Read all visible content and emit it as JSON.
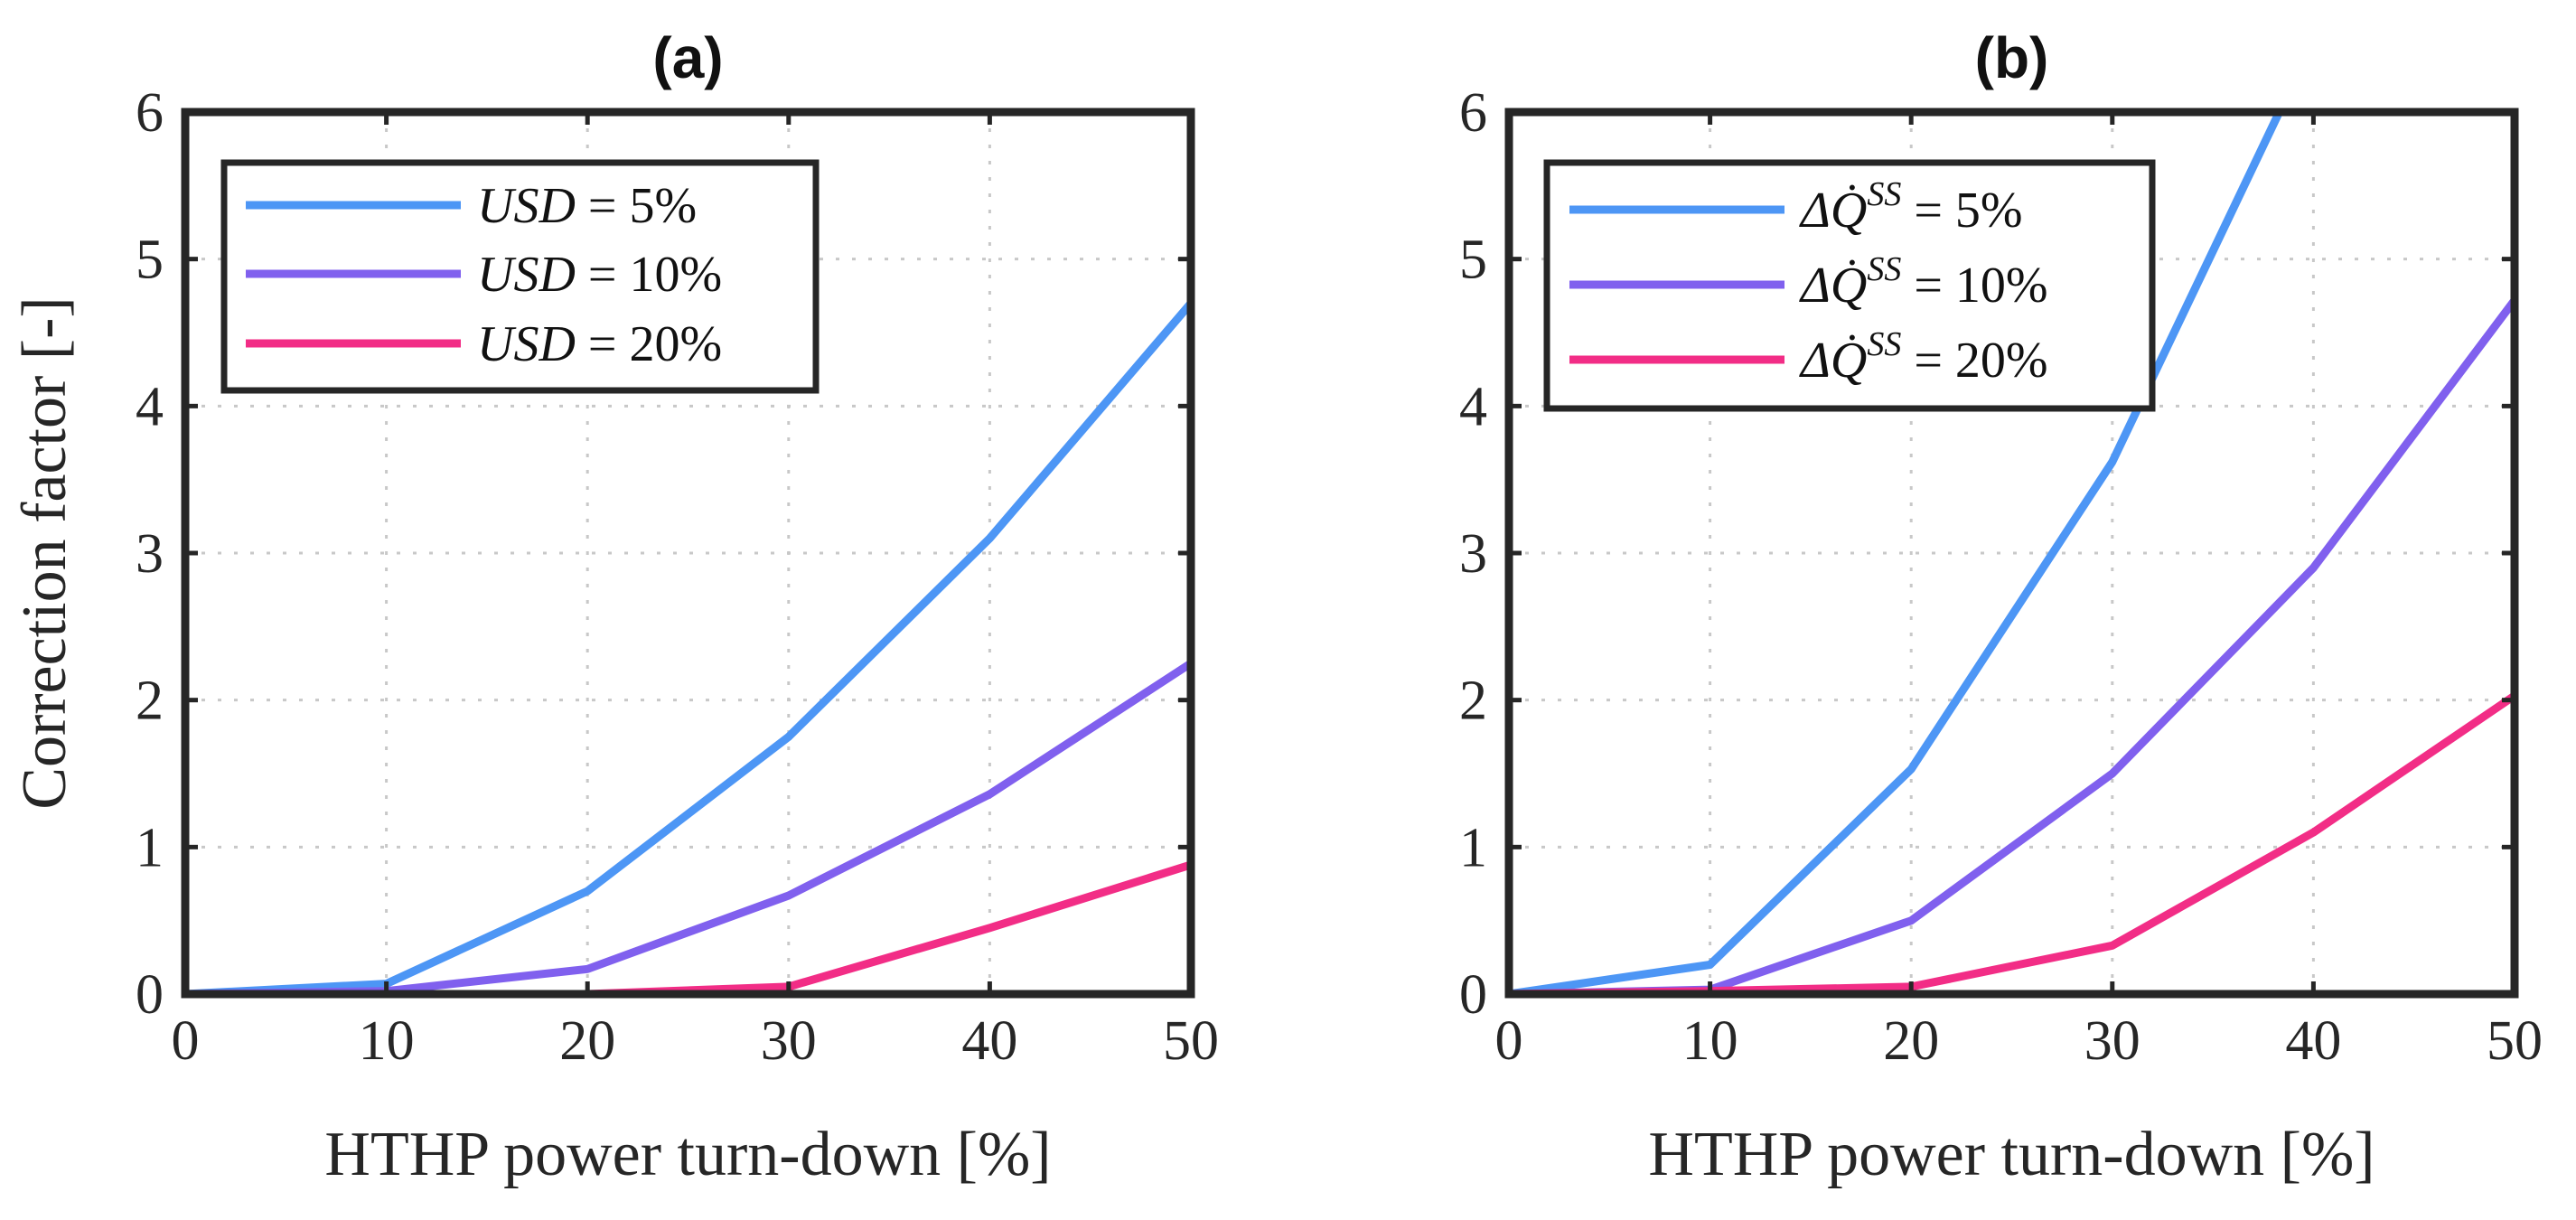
{
  "chart_data": [
    {
      "type": "line",
      "title": "(a)",
      "xlabel": "HTHP power turn-down [%]",
      "ylabel": "Correction factor [-]",
      "xlim": [
        0,
        50
      ],
      "ylim": [
        0,
        6
      ],
      "xticks": [
        "0",
        "10",
        "20",
        "30",
        "40",
        "50"
      ],
      "yticks": [
        "0",
        "1",
        "2",
        "3",
        "4",
        "5",
        "6"
      ],
      "grid": true,
      "legend_position": "top-left",
      "x": [
        0,
        10,
        20,
        30,
        40,
        50
      ],
      "series": [
        {
          "name": "USD = 5%",
          "legend_var": "USD",
          "legend_value": "= 5%",
          "color": "#4d96f5",
          "values": [
            0,
            0.07,
            0.7,
            1.75,
            3.1,
            4.7
          ]
        },
        {
          "name": "USD = 10%",
          "legend_var": "USD",
          "legend_value": "= 10%",
          "color": "#8060ee",
          "values": [
            0,
            0.02,
            0.17,
            0.67,
            1.36,
            2.25
          ]
        },
        {
          "name": "USD = 20%",
          "legend_var": "USD",
          "legend_value": "= 20%",
          "color": "#f22d86",
          "values": [
            0,
            0.0,
            0.0,
            0.05,
            0.45,
            0.88
          ]
        }
      ]
    },
    {
      "type": "line",
      "title": "(b)",
      "xlabel": "HTHP power turn-down [%]",
      "ylabel": "",
      "xlim": [
        0,
        50
      ],
      "ylim": [
        0,
        6
      ],
      "xticks": [
        "0",
        "10",
        "20",
        "30",
        "40",
        "50"
      ],
      "yticks": [
        "0",
        "1",
        "2",
        "3",
        "4",
        "5",
        "6"
      ],
      "grid": true,
      "legend_position": "top-left",
      "x": [
        0,
        10,
        20,
        30,
        40,
        50
      ],
      "series": [
        {
          "name": "ΔQ̇^SS = 5%",
          "legend_var": "ΔQ̇",
          "legend_sup": "SS",
          "legend_value": "= 5%",
          "color": "#4d96f5",
          "x": [
            0,
            10,
            20,
            30,
            38.3
          ],
          "values": [
            0,
            0.2,
            1.53,
            3.62,
            6.0
          ]
        },
        {
          "name": "ΔQ̇^SS = 10%",
          "legend_var": "ΔQ̇",
          "legend_sup": "SS",
          "legend_value": "= 10%",
          "color": "#8060ee",
          "x": [
            0,
            10,
            20,
            30,
            40,
            50
          ],
          "values": [
            0,
            0.03,
            0.5,
            1.5,
            2.9,
            4.72
          ]
        },
        {
          "name": "ΔQ̇^SS = 20%",
          "legend_var": "ΔQ̇",
          "legend_sup": "SS",
          "legend_value": "= 20%",
          "color": "#f22d86",
          "x": [
            0,
            10,
            20,
            30,
            40,
            50
          ],
          "values": [
            0,
            0.02,
            0.05,
            0.33,
            1.1,
            2.03
          ]
        }
      ]
    }
  ]
}
